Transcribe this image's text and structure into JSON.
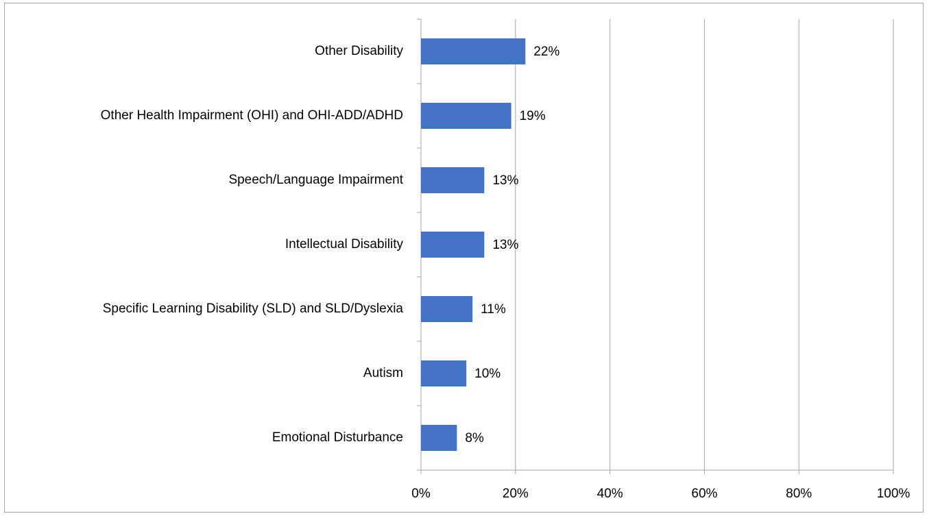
{
  "chart_data": {
    "type": "barh",
    "categories": [
      "Other Disability",
      "Other Health Impairment (OHI) and OHI-ADD/ADHD",
      "Speech/Language Impairment",
      "Intellectual Disability",
      "Specific Learning Disability (SLD) and SLD/Dyslexia",
      "Autism",
      "Emotional Disturbance"
    ],
    "values": [
      22.1,
      19.1,
      13.4,
      13.4,
      10.9,
      9.6,
      7.6
    ],
    "value_labels": [
      "22%",
      "19%",
      "13%",
      "13%",
      "11%",
      "10%",
      "8%"
    ],
    "color": "#4472c4",
    "xlim": [
      0,
      100
    ],
    "xticks": [
      {
        "value": 0,
        "label": "0%"
      },
      {
        "value": 20,
        "label": "20%"
      },
      {
        "value": 40,
        "label": "40%"
      },
      {
        "value": 60,
        "label": "60%"
      },
      {
        "value": 80,
        "label": "80%"
      },
      {
        "value": 100,
        "label": "100%"
      }
    ],
    "grid": true
  }
}
